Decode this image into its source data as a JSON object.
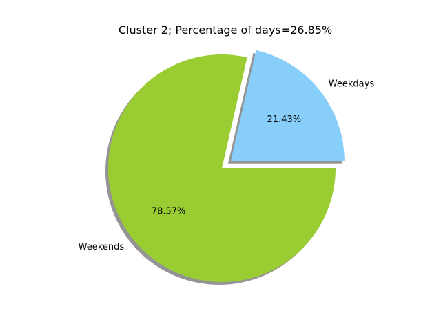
{
  "chart_data": {
    "type": "pie",
    "title": "Cluster 2; Percentage of days=26.85%",
    "slices": [
      {
        "label": "Weekdays",
        "value": 21.43,
        "pct_label": "21.43%",
        "color": "#87CEFA",
        "exploded": true
      },
      {
        "label": "Weekends",
        "value": 78.57,
        "pct_label": "78.57%",
        "color": "#9ACD32",
        "exploded": false
      }
    ],
    "start_angle_deg": 0,
    "direction": "counterclockwise",
    "shadow": true
  }
}
